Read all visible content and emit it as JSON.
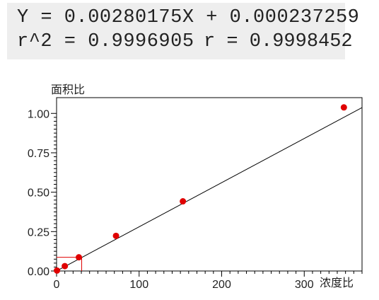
{
  "equation": {
    "line1": "Y = 0.00280175X + 0.000237259",
    "line2": "r^2 = 0.9996905",
    "r_text": "r = 0.9998452"
  },
  "chart_data": {
    "type": "scatter",
    "ylabel": "面积比",
    "xlabel": "浓度比",
    "xlim": [
      0,
      370
    ],
    "ylim": [
      0,
      1.1
    ],
    "x_ticks": [
      "0",
      "100",
      "200",
      "300"
    ],
    "y_ticks": [
      "0.00",
      "0.25",
      "0.50",
      "0.75",
      "1.00"
    ],
    "points": [
      {
        "x": 0.5,
        "y": 0.003
      },
      {
        "x": 10,
        "y": 0.031
      },
      {
        "x": 27,
        "y": 0.087
      },
      {
        "x": 72,
        "y": 0.223
      },
      {
        "x": 153,
        "y": 0.442
      },
      {
        "x": 348,
        "y": 1.038
      }
    ],
    "fit": {
      "slope": 0.00280175,
      "intercept": 0.000237259
    },
    "marker": {
      "x": 27,
      "y": 0.087
    },
    "colors": {
      "points": "#e00000",
      "line": "#000000",
      "marker": "#e00000"
    }
  }
}
